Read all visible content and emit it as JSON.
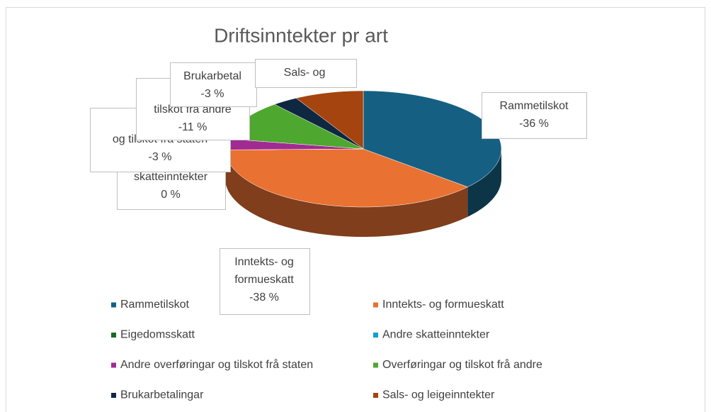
{
  "chart_data": {
    "type": "pie",
    "title": "Driftsinntekter pr art",
    "categories": [
      "Rammetilskot",
      "Inntekts- og formueskatt",
      "Eigedomsskatt",
      "Andre skatteinntekter",
      "Andre overføringar og tilskot frå staten",
      "Overføringar og tilskot frå andre",
      "Brukarbetalingar",
      "Sals- og leigeinntekter"
    ],
    "values": [
      -36,
      -38,
      0,
      0,
      -3,
      -11,
      -3,
      -8
    ],
    "value_labels": [
      "-36 %",
      "-38 %",
      null,
      "0 %",
      "-3 %",
      "-11 %",
      "-3 %",
      null
    ],
    "data_labels": [
      [
        "Rammetilskot"
      ],
      [
        "Inntekts- og",
        "formueskatt"
      ],
      null,
      [
        "skatteinntekter"
      ],
      [
        "Andre",
        "og tilskot frå staten"
      ],
      [
        "Over",
        "tilskot frå andre"
      ],
      [
        "Brukarbetal"
      ],
      [
        "Sals- og"
      ]
    ],
    "colors": [
      "#156082",
      "#e97132",
      "#196b24",
      "#0f9ed5",
      "#a02b93",
      "#4ea72e",
      "#0e2841",
      "#a5440f"
    ],
    "legend": "bottom"
  }
}
